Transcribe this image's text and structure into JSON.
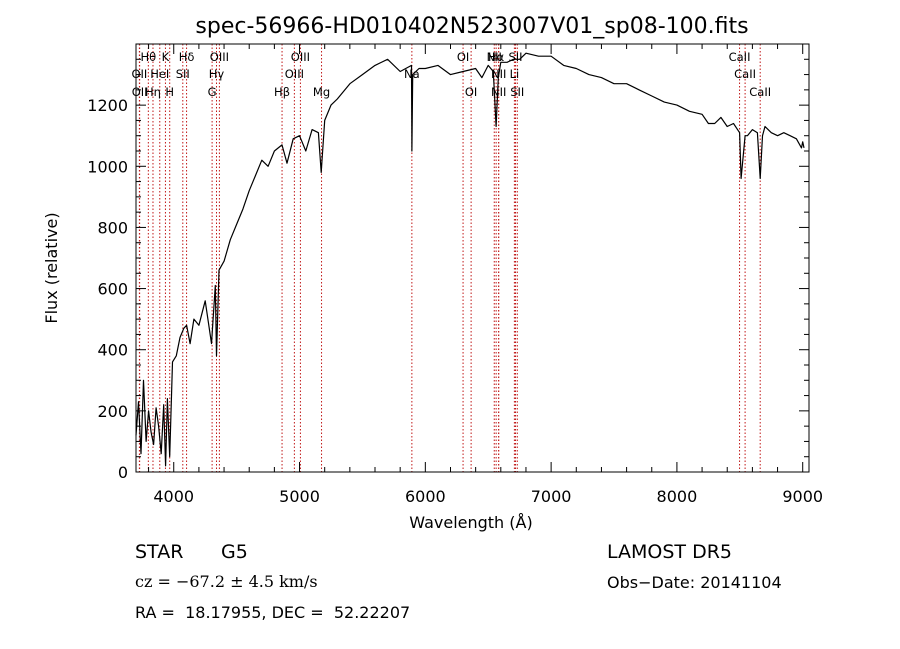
{
  "chart_data": {
    "type": "line",
    "title": "spec-56966-HD010402N523007V01_sp08-100.fits",
    "xlabel": "Wavelength (Å)",
    "ylabel": "Flux (relative)",
    "xlim": [
      3700,
      9050
    ],
    "ylim": [
      0,
      1400
    ],
    "xticks": [
      4000,
      5000,
      6000,
      7000,
      8000,
      9000
    ],
    "yticks": [
      0,
      200,
      400,
      600,
      800,
      1000,
      1200
    ],
    "grid": false,
    "series": [
      {
        "color": "#000000",
        "x": [
          3700,
          3720,
          3740,
          3760,
          3780,
          3800,
          3820,
          3840,
          3860,
          3880,
          3900,
          3920,
          3935,
          3950,
          3968,
          3990,
          4020,
          4050,
          4080,
          4102,
          4130,
          4160,
          4200,
          4250,
          4300,
          4330,
          4340,
          4360,
          4400,
          4450,
          4500,
          4550,
          4600,
          4650,
          4700,
          4750,
          4800,
          4861,
          4900,
          4950,
          5000,
          5050,
          5100,
          5150,
          5172,
          5200,
          5250,
          5300,
          5400,
          5500,
          5600,
          5700,
          5800,
          5890,
          5893,
          5900,
          5950,
          6000,
          6100,
          6200,
          6300,
          6400,
          6450,
          6500,
          6540,
          6563,
          6580,
          6600,
          6650,
          6700,
          6750,
          6800,
          6900,
          7000,
          7100,
          7200,
          7300,
          7400,
          7500,
          7600,
          7700,
          7800,
          7900,
          8000,
          8100,
          8200,
          8250,
          8300,
          8350,
          8400,
          8450,
          8498,
          8510,
          8542,
          8560,
          8600,
          8640,
          8662,
          8680,
          8700,
          8750,
          8800,
          8850,
          8900,
          8950,
          8990,
          9000,
          9010
        ],
        "y": [
          120,
          230,
          60,
          300,
          100,
          200,
          130,
          90,
          210,
          150,
          60,
          220,
          20,
          240,
          50,
          360,
          380,
          440,
          470,
          480,
          420,
          500,
          480,
          560,
          420,
          610,
          380,
          660,
          690,
          760,
          810,
          860,
          920,
          970,
          1020,
          1000,
          1050,
          1070,
          1010,
          1090,
          1100,
          1050,
          1120,
          1110,
          980,
          1150,
          1200,
          1220,
          1270,
          1300,
          1330,
          1350,
          1310,
          1330,
          1050,
          1300,
          1320,
          1320,
          1330,
          1300,
          1310,
          1320,
          1290,
          1330,
          1310,
          1130,
          1290,
          1340,
          1340,
          1350,
          1350,
          1370,
          1360,
          1360,
          1330,
          1320,
          1300,
          1290,
          1270,
          1270,
          1250,
          1230,
          1210,
          1200,
          1180,
          1170,
          1140,
          1140,
          1160,
          1130,
          1140,
          1110,
          960,
          1100,
          1100,
          1120,
          1110,
          960,
          1100,
          1130,
          1110,
          1100,
          1110,
          1100,
          1090,
          1060,
          1080,
          1060
        ]
      }
    ],
    "spectral_lines": [
      {
        "label": "Hθ",
        "wavelength": 3798,
        "row": 0
      },
      {
        "label": "OII",
        "wavelength": 3727,
        "row": 1
      },
      {
        "label": "OII",
        "wavelength": 3729,
        "row": 2
      },
      {
        "label": "K",
        "wavelength": 3934,
        "row": 0
      },
      {
        "label": "HeI",
        "wavelength": 3889,
        "row": 1
      },
      {
        "label": "Hη",
        "wavelength": 3835,
        "row": 2
      },
      {
        "label": "H",
        "wavelength": 3968,
        "row": 2
      },
      {
        "label": "Hδ",
        "wavelength": 4102,
        "row": 0
      },
      {
        "label": "SII",
        "wavelength": 4072,
        "row": 1
      },
      {
        "label": "OIII",
        "wavelength": 4363,
        "row": 0
      },
      {
        "label": "Hγ",
        "wavelength": 4340,
        "row": 1
      },
      {
        "label": "G",
        "wavelength": 4305,
        "row": 2
      },
      {
        "label": "OIII",
        "wavelength": 5007,
        "row": 0
      },
      {
        "label": "OIII",
        "wavelength": 4959,
        "row": 1
      },
      {
        "label": "Hβ",
        "wavelength": 4861,
        "row": 2
      },
      {
        "label": "Mg",
        "wavelength": 5175,
        "row": 2
      },
      {
        "label": "Na",
        "wavelength": 5893,
        "row": 1
      },
      {
        "label": "OI",
        "wavelength": 6300,
        "row": 0
      },
      {
        "label": "OI",
        "wavelength": 6364,
        "row": 2
      },
      {
        "label": "NII",
        "wavelength": 6548,
        "row": 0
      },
      {
        "label": "Hα",
        "wavelength": 6563,
        "row": 0
      },
      {
        "label": "SII",
        "wavelength": 6717,
        "row": 0
      },
      {
        "label": "NII",
        "wavelength": 6583,
        "row": 1
      },
      {
        "label": "Li",
        "wavelength": 6708,
        "row": 1
      },
      {
        "label": "NII",
        "wavelength": 6583,
        "row": 2
      },
      {
        "label": "SII",
        "wavelength": 6731,
        "row": 2
      },
      {
        "label": "CaII",
        "wavelength": 8498,
        "row": 0
      },
      {
        "label": "CaII",
        "wavelength": 8542,
        "row": 1
      },
      {
        "label": "CaII",
        "wavelength": 8662,
        "row": 2
      }
    ]
  },
  "info": {
    "object_class": "STAR",
    "subclass": "G5",
    "survey": "LAMOST DR5",
    "cz": "cz = −67.2 ± 4.5 km/s",
    "obs_date": "Obs−Date: 20141104",
    "coords": "RA =  18.17955, DEC =  52.22207"
  }
}
